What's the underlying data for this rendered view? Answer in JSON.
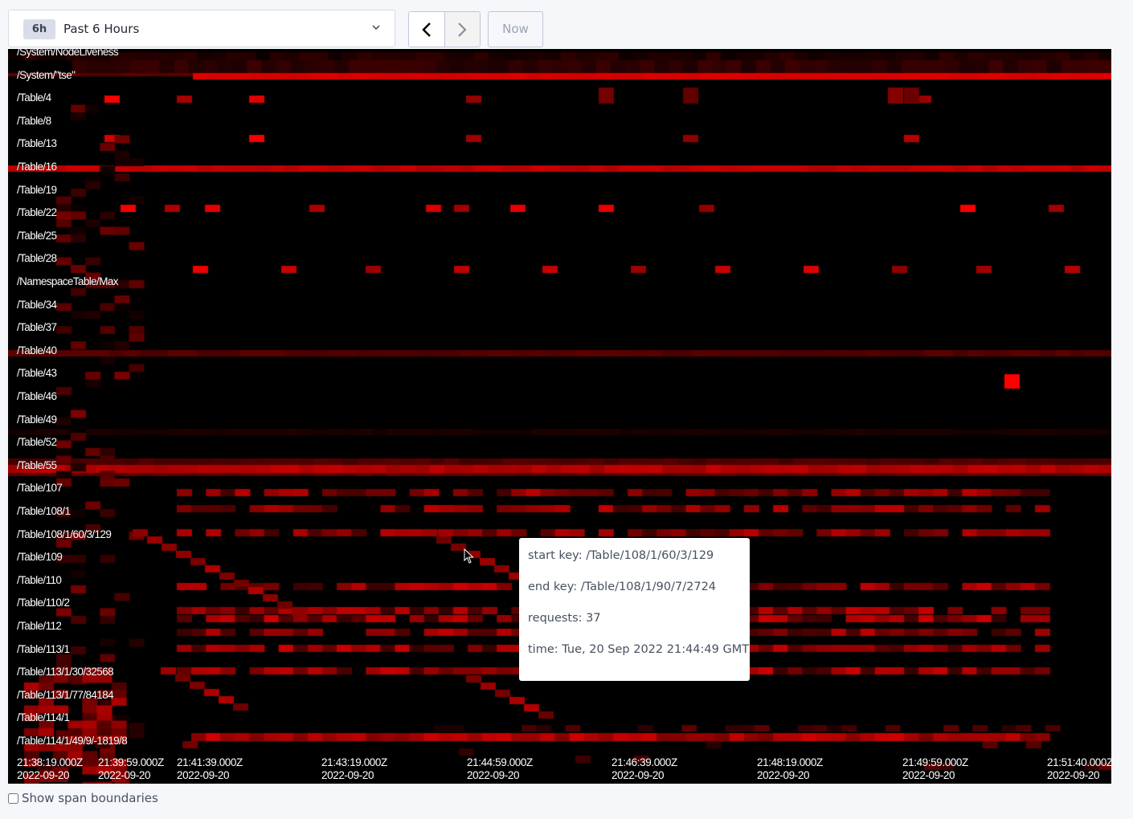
{
  "time_range": {
    "badge": "6h",
    "label": "Past 6 Hours",
    "dropdown_icon": "chevron-down-icon"
  },
  "nav": {
    "prev_icon": "chevron-left-icon",
    "next_icon": "chevron-right-icon",
    "now_label": "Now"
  },
  "keys": [
    "/System/NodeLiveness",
    "/System/\"tse\"",
    "/Table/4",
    "/Table/8",
    "/Table/13",
    "/Table/16",
    "/Table/19",
    "/Table/22",
    "/Table/25",
    "/Table/28",
    "/NamespaceTable/Max",
    "/Table/34",
    "/Table/37",
    "/Table/40",
    "/Table/43",
    "/Table/46",
    "/Table/49",
    "/Table/52",
    "/Table/55",
    "/Table/107",
    "/Table/108/1",
    "/Table/108/1/60/3/129",
    "/Table/109",
    "/Table/110",
    "/Table/110/2",
    "/Table/112",
    "/Table/113/1",
    "/Table/113/1/30/32568",
    "/Table/113/1/77/84184",
    "/Table/114/1",
    "/Table/114/1/49/9/-1819/8"
  ],
  "time_ticks": [
    {
      "time": "21:38:19.000Z",
      "date": "2022-09-20"
    },
    {
      "time": "21:39:59.000Z",
      "date": "2022-09-20"
    },
    {
      "time": "21:41:39.000Z",
      "date": "2022-09-20"
    },
    {
      "time": "21:43:19.000Z",
      "date": "2022-09-20"
    },
    {
      "time": "21:44:59.000Z",
      "date": "2022-09-20"
    },
    {
      "time": "21:46:39.000Z",
      "date": "2022-09-20"
    },
    {
      "time": "21:48:19.000Z",
      "date": "2022-09-20"
    },
    {
      "time": "21:49:59.000Z",
      "date": "2022-09-20"
    },
    {
      "time": "21:51:40.000Z",
      "date": "2022-09-20"
    }
  ],
  "tooltip": {
    "start_key": "start key: /Table/108/1/60/3/129",
    "end_key": "end key: /Table/108/1/90/7/2724",
    "requests": "requests: 37",
    "time": "time: Tue, 20 Sep 2022 21:44:49 GMT"
  },
  "show_span_boundaries": {
    "label": "Show span boundaries",
    "checked": false
  },
  "colors": {
    "heat_max": "#ff0000",
    "background": "#000000"
  }
}
